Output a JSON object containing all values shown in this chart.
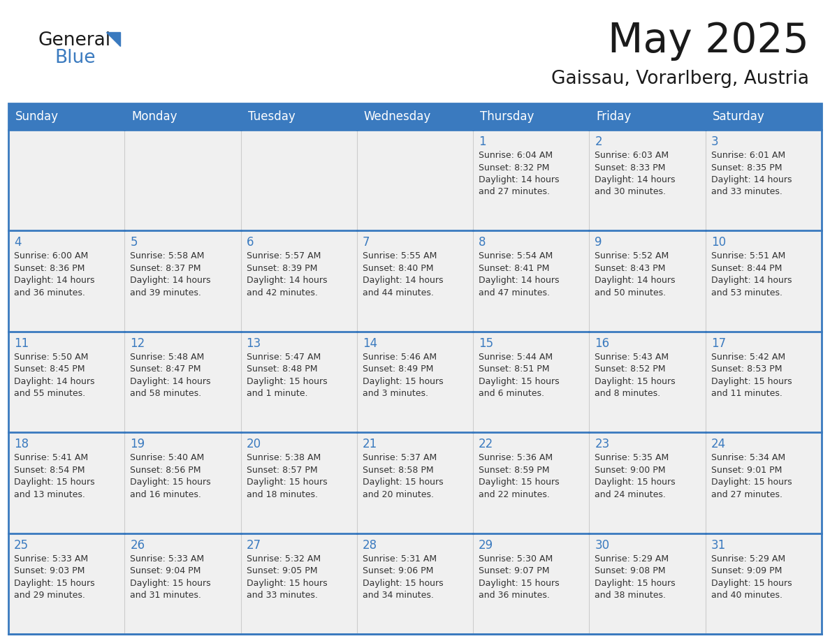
{
  "title": "May 2025",
  "subtitle": "Gaissau, Vorarlberg, Austria",
  "header_color": "#3a7abf",
  "header_text_color": "#ffffff",
  "cell_bg_color": "#f0f0f0",
  "border_color": "#3a7abf",
  "day_number_color": "#3a7abf",
  "text_color": "#333333",
  "logo_general_color": "#1a1a1a",
  "logo_blue_color": "#3a7abf",
  "logo_triangle_color": "#3a7abf",
  "days_of_week": [
    "Sunday",
    "Monday",
    "Tuesday",
    "Wednesday",
    "Thursday",
    "Friday",
    "Saturday"
  ],
  "weeks": [
    [
      {
        "day": "",
        "info": ""
      },
      {
        "day": "",
        "info": ""
      },
      {
        "day": "",
        "info": ""
      },
      {
        "day": "",
        "info": ""
      },
      {
        "day": "1",
        "info": "Sunrise: 6:04 AM\nSunset: 8:32 PM\nDaylight: 14 hours\nand 27 minutes."
      },
      {
        "day": "2",
        "info": "Sunrise: 6:03 AM\nSunset: 8:33 PM\nDaylight: 14 hours\nand 30 minutes."
      },
      {
        "day": "3",
        "info": "Sunrise: 6:01 AM\nSunset: 8:35 PM\nDaylight: 14 hours\nand 33 minutes."
      }
    ],
    [
      {
        "day": "4",
        "info": "Sunrise: 6:00 AM\nSunset: 8:36 PM\nDaylight: 14 hours\nand 36 minutes."
      },
      {
        "day": "5",
        "info": "Sunrise: 5:58 AM\nSunset: 8:37 PM\nDaylight: 14 hours\nand 39 minutes."
      },
      {
        "day": "6",
        "info": "Sunrise: 5:57 AM\nSunset: 8:39 PM\nDaylight: 14 hours\nand 42 minutes."
      },
      {
        "day": "7",
        "info": "Sunrise: 5:55 AM\nSunset: 8:40 PM\nDaylight: 14 hours\nand 44 minutes."
      },
      {
        "day": "8",
        "info": "Sunrise: 5:54 AM\nSunset: 8:41 PM\nDaylight: 14 hours\nand 47 minutes."
      },
      {
        "day": "9",
        "info": "Sunrise: 5:52 AM\nSunset: 8:43 PM\nDaylight: 14 hours\nand 50 minutes."
      },
      {
        "day": "10",
        "info": "Sunrise: 5:51 AM\nSunset: 8:44 PM\nDaylight: 14 hours\nand 53 minutes."
      }
    ],
    [
      {
        "day": "11",
        "info": "Sunrise: 5:50 AM\nSunset: 8:45 PM\nDaylight: 14 hours\nand 55 minutes."
      },
      {
        "day": "12",
        "info": "Sunrise: 5:48 AM\nSunset: 8:47 PM\nDaylight: 14 hours\nand 58 minutes."
      },
      {
        "day": "13",
        "info": "Sunrise: 5:47 AM\nSunset: 8:48 PM\nDaylight: 15 hours\nand 1 minute."
      },
      {
        "day": "14",
        "info": "Sunrise: 5:46 AM\nSunset: 8:49 PM\nDaylight: 15 hours\nand 3 minutes."
      },
      {
        "day": "15",
        "info": "Sunrise: 5:44 AM\nSunset: 8:51 PM\nDaylight: 15 hours\nand 6 minutes."
      },
      {
        "day": "16",
        "info": "Sunrise: 5:43 AM\nSunset: 8:52 PM\nDaylight: 15 hours\nand 8 minutes."
      },
      {
        "day": "17",
        "info": "Sunrise: 5:42 AM\nSunset: 8:53 PM\nDaylight: 15 hours\nand 11 minutes."
      }
    ],
    [
      {
        "day": "18",
        "info": "Sunrise: 5:41 AM\nSunset: 8:54 PM\nDaylight: 15 hours\nand 13 minutes."
      },
      {
        "day": "19",
        "info": "Sunrise: 5:40 AM\nSunset: 8:56 PM\nDaylight: 15 hours\nand 16 minutes."
      },
      {
        "day": "20",
        "info": "Sunrise: 5:38 AM\nSunset: 8:57 PM\nDaylight: 15 hours\nand 18 minutes."
      },
      {
        "day": "21",
        "info": "Sunrise: 5:37 AM\nSunset: 8:58 PM\nDaylight: 15 hours\nand 20 minutes."
      },
      {
        "day": "22",
        "info": "Sunrise: 5:36 AM\nSunset: 8:59 PM\nDaylight: 15 hours\nand 22 minutes."
      },
      {
        "day": "23",
        "info": "Sunrise: 5:35 AM\nSunset: 9:00 PM\nDaylight: 15 hours\nand 24 minutes."
      },
      {
        "day": "24",
        "info": "Sunrise: 5:34 AM\nSunset: 9:01 PM\nDaylight: 15 hours\nand 27 minutes."
      }
    ],
    [
      {
        "day": "25",
        "info": "Sunrise: 5:33 AM\nSunset: 9:03 PM\nDaylight: 15 hours\nand 29 minutes."
      },
      {
        "day": "26",
        "info": "Sunrise: 5:33 AM\nSunset: 9:04 PM\nDaylight: 15 hours\nand 31 minutes."
      },
      {
        "day": "27",
        "info": "Sunrise: 5:32 AM\nSunset: 9:05 PM\nDaylight: 15 hours\nand 33 minutes."
      },
      {
        "day": "28",
        "info": "Sunrise: 5:31 AM\nSunset: 9:06 PM\nDaylight: 15 hours\nand 34 minutes."
      },
      {
        "day": "29",
        "info": "Sunrise: 5:30 AM\nSunset: 9:07 PM\nDaylight: 15 hours\nand 36 minutes."
      },
      {
        "day": "30",
        "info": "Sunrise: 5:29 AM\nSunset: 9:08 PM\nDaylight: 15 hours\nand 38 minutes."
      },
      {
        "day": "31",
        "info": "Sunrise: 5:29 AM\nSunset: 9:09 PM\nDaylight: 15 hours\nand 40 minutes."
      }
    ]
  ]
}
